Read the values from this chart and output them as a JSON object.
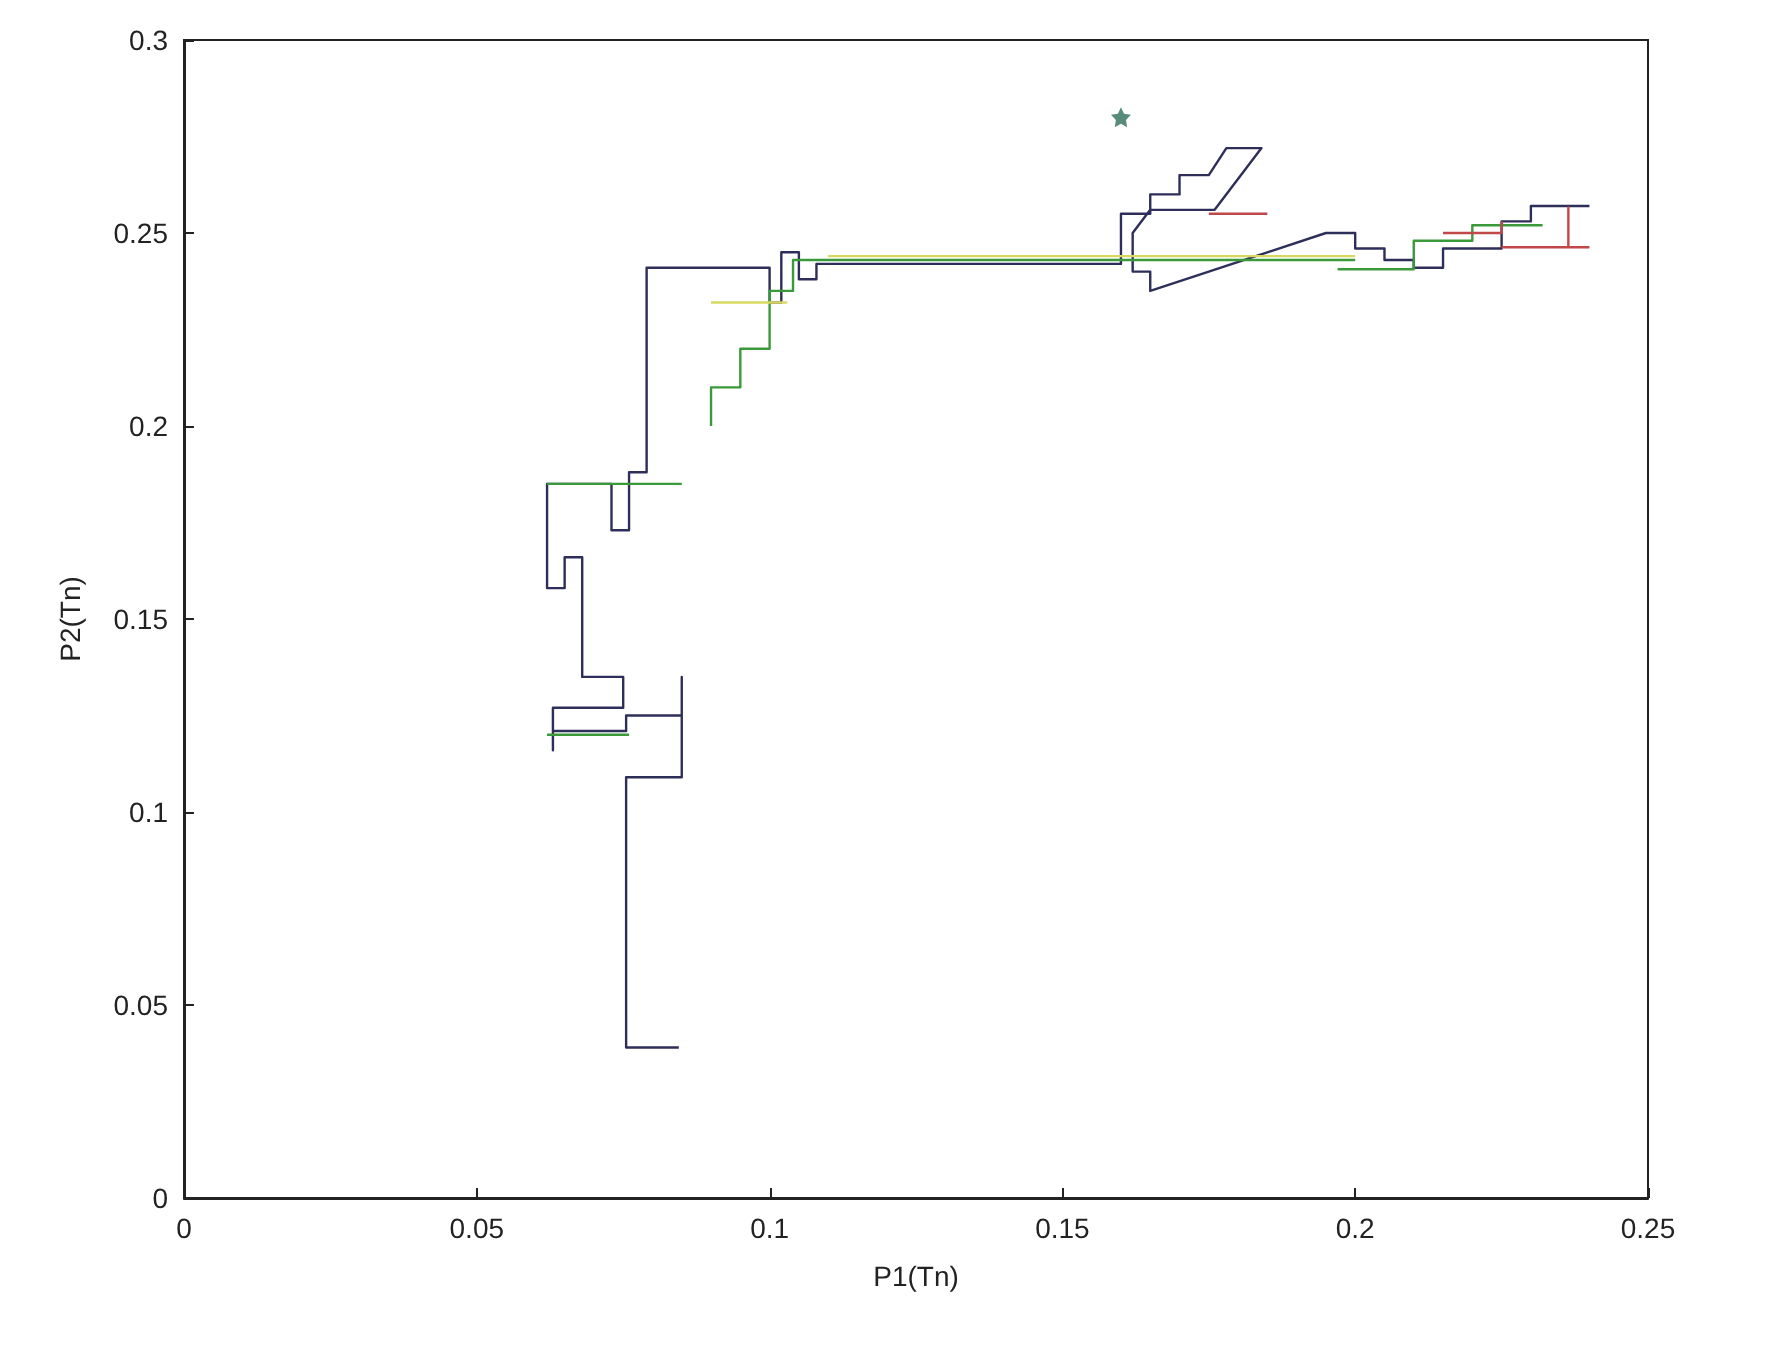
{
  "chart_data": {
    "type": "line",
    "xlabel": "P1(Tn)",
    "ylabel": "P2(Tn)",
    "xlim": [
      0,
      0.25
    ],
    "ylim": [
      0,
      0.3
    ],
    "xticks": [
      0,
      0.05,
      0.1,
      0.15,
      0.2,
      0.25
    ],
    "yticks": [
      0,
      0.05,
      0.1,
      0.15,
      0.2,
      0.25,
      0.3
    ],
    "grid": false,
    "marker": "none",
    "line_style": "solid",
    "series": [
      {
        "color": "#2e2e5a",
        "x": [
          0.0845,
          0.0755,
          0.0755,
          0.085,
          0.085,
          0.085,
          0.0755,
          0.0755,
          0.063,
          0.063,
          0.063,
          0.075,
          0.075,
          0.068,
          0.068,
          0.065,
          0.065,
          0.062,
          0.062,
          0.073,
          0.073,
          0.076,
          0.076,
          0.079,
          0.079,
          0.1,
          0.1,
          0.102,
          0.102,
          0.105,
          0.105,
          0.108,
          0.108,
          0.16,
          0.16,
          0.165,
          0.165,
          0.17,
          0.17,
          0.175,
          0.178,
          0.184,
          0.176,
          0.165,
          0.162,
          0.162,
          0.165,
          0.165,
          0.175,
          0.185,
          0.195,
          0.2,
          0.2,
          0.205,
          0.205,
          0.21,
          0.21,
          0.215,
          0.215,
          0.225,
          0.225,
          0.23,
          0.23,
          0.24
        ],
        "values": [
          0.039,
          0.039,
          0.109,
          0.109,
          0.135,
          0.125,
          0.125,
          0.121,
          0.121,
          0.116,
          0.127,
          0.127,
          0.135,
          0.135,
          0.166,
          0.166,
          0.158,
          0.158,
          0.185,
          0.185,
          0.173,
          0.173,
          0.188,
          0.188,
          0.241,
          0.241,
          0.232,
          0.232,
          0.245,
          0.245,
          0.238,
          0.238,
          0.242,
          0.242,
          0.255,
          0.255,
          0.26,
          0.26,
          0.265,
          0.265,
          0.272,
          0.272,
          0.256,
          0.256,
          0.25,
          0.24,
          0.24,
          0.235,
          0.24,
          0.245,
          0.25,
          0.25,
          0.246,
          0.246,
          0.243,
          0.243,
          0.241,
          0.241,
          0.246,
          0.246,
          0.253,
          0.253,
          0.257,
          0.257
        ]
      },
      {
        "color": "#3a9a3a",
        "x": [
          0.062,
          0.085
        ],
        "values": [
          0.185,
          0.185
        ]
      },
      {
        "color": "#3a9a3a",
        "x": [
          0.062,
          0.076
        ],
        "values": [
          0.12,
          0.12
        ]
      },
      {
        "color": "#3a9a3a",
        "x": [
          0.09,
          0.09,
          0.095,
          0.095,
          0.1,
          0.1,
          0.104,
          0.104,
          0.2
        ],
        "values": [
          0.2,
          0.21,
          0.21,
          0.22,
          0.22,
          0.235,
          0.235,
          0.243,
          0.243
        ]
      },
      {
        "color": "#3a9a3a",
        "x": [
          0.197,
          0.21,
          0.21,
          0.22,
          0.22,
          0.232
        ],
        "values": [
          0.2406,
          0.2406,
          0.248,
          0.248,
          0.252,
          0.252
        ]
      },
      {
        "color": "#c04848",
        "x": [
          0.175,
          0.185
        ],
        "values": [
          0.255,
          0.255
        ]
      },
      {
        "color": "#c04848",
        "x": [
          0.215,
          0.225,
          0.225
        ],
        "values": [
          0.25,
          0.25,
          0.253
        ]
      },
      {
        "color": "#c04848",
        "x": [
          0.225,
          0.2364,
          0.2364,
          0.2364,
          0.24
        ],
        "values": [
          0.2463,
          0.2463,
          0.2566,
          0.2463,
          0.2463
        ]
      },
      {
        "color": "#d8d860",
        "x": [
          0.09,
          0.103
        ],
        "values": [
          0.232,
          0.232
        ]
      },
      {
        "color": "#d8d860",
        "x": [
          0.11,
          0.2
        ],
        "values": [
          0.244,
          0.244
        ]
      },
      {
        "type": "scatter",
        "marker": "star",
        "color": "#2e6e5a",
        "x": [
          0.16
        ],
        "values": [
          0.28
        ]
      }
    ]
  }
}
